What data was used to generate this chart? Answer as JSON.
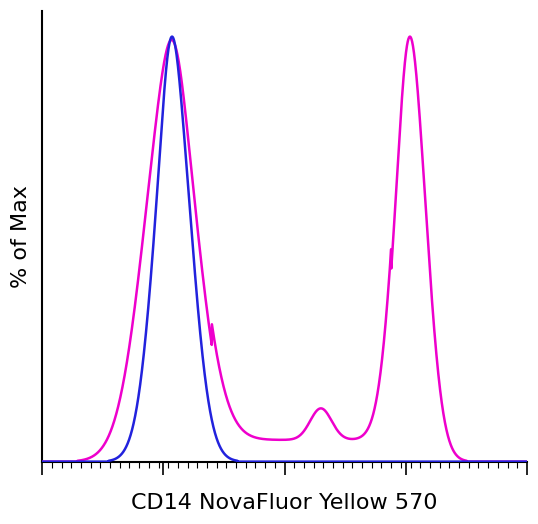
{
  "xlabel": "CD14 NovaFluor Yellow 570",
  "ylabel": "% of Max",
  "background_color": "#ffffff",
  "line_blue_color": "#2222dd",
  "line_magenta_color": "#ee00cc",
  "xlabel_fontsize": 16,
  "ylabel_fontsize": 16
}
